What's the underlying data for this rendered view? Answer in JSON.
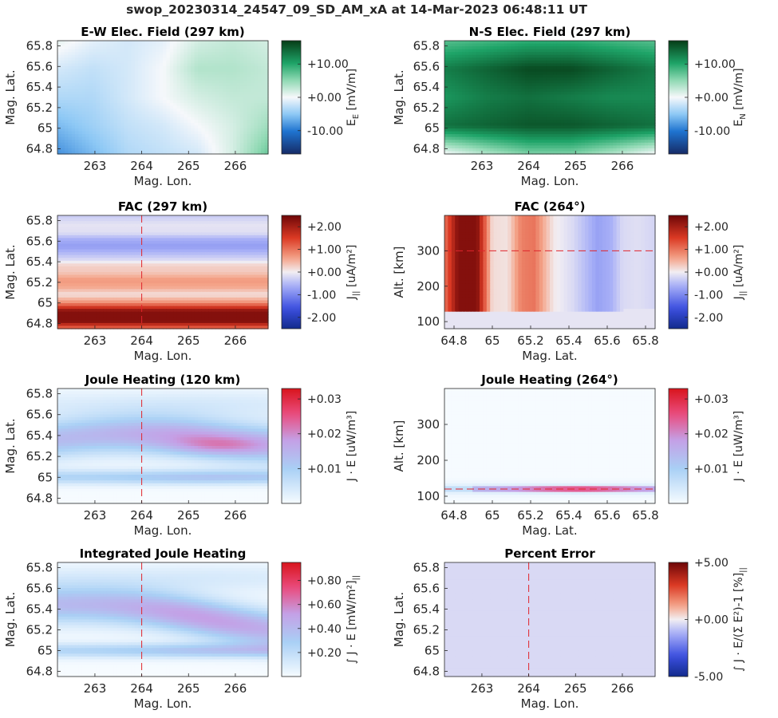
{
  "figure_title": "swop_20230314_24547_09_SD_AM_xA at 14-Mar-2023 06:48:11 UT",
  "chart_data": [
    {
      "type": "heatmap",
      "title": "E-W Elec. Field (297 km)",
      "xlabel": "Mag. Lon.",
      "ylabel": "Mag. Lat.",
      "xlim": [
        262.2,
        266.7
      ],
      "ylim": [
        64.75,
        65.85
      ],
      "xticks": [
        "263",
        "264",
        "265",
        "266"
      ],
      "yticks": [
        "64.8",
        "65",
        "65.2",
        "65.4",
        "65.6",
        "65.8"
      ],
      "colorbar": {
        "label_main": "E",
        "label_sub": "E",
        "label_unit": " [mV/m]",
        "ticks": [
          "+10.00",
          "+0.00",
          "-10.00"
        ],
        "range": [
          -17,
          17
        ],
        "colormap": "blue-white-green"
      },
      "field_description_grid_rows_top_to_bottom": [
        [
          0.05,
          -0.05,
          -0.1,
          -0.05,
          0.1,
          0.15,
          0.1
        ],
        [
          -0.1,
          -0.15,
          -0.1,
          0.0,
          0.2,
          0.2,
          0.15
        ],
        [
          -0.2,
          -0.2,
          -0.1,
          0.0,
          0.1,
          0.15,
          0.15
        ],
        [
          -0.35,
          -0.25,
          -0.15,
          -0.1,
          0.0,
          0.1,
          0.25
        ],
        [
          -0.5,
          -0.35,
          -0.2,
          -0.15,
          -0.1,
          0.1,
          0.4
        ]
      ],
      "reference_line": null
    },
    {
      "type": "heatmap",
      "title": "N-S Elec. Field (297 km)",
      "xlabel": "Mag. Lon.",
      "ylabel": "Mag. Lat.",
      "xlim": [
        262.2,
        266.7
      ],
      "ylim": [
        64.75,
        65.85
      ],
      "xticks": [
        "263",
        "264",
        "265",
        "266"
      ],
      "yticks": [
        "64.8",
        "65",
        "65.2",
        "65.4",
        "65.6",
        "65.8"
      ],
      "colorbar": {
        "label_main": "E",
        "label_sub": "N",
        "label_unit": " [mV/m]",
        "ticks": [
          "+10.00",
          "+0.00",
          "-10.00"
        ],
        "range": [
          -17,
          17
        ],
        "colormap": "blue-white-green"
      },
      "field_description_grid_rows_top_to_bottom": [
        [
          0.45,
          0.5,
          0.55,
          0.55,
          0.5,
          0.45
        ],
        [
          0.75,
          0.85,
          0.95,
          0.95,
          0.85,
          0.75
        ],
        [
          0.65,
          0.75,
          0.8,
          0.75,
          0.7,
          0.7
        ],
        [
          0.8,
          0.85,
          0.9,
          0.9,
          0.85,
          0.8
        ],
        [
          0.0,
          0.2,
          0.35,
          0.35,
          0.2,
          0.0
        ]
      ],
      "reference_line": null
    },
    {
      "type": "heatmap",
      "title": "FAC (297 km)",
      "xlabel": "Mag. Lon.",
      "ylabel": "Mag. Lat.",
      "xlim": [
        262.2,
        266.7
      ],
      "ylim": [
        64.75,
        65.85
      ],
      "xticks": [
        "263",
        "264",
        "265",
        "266"
      ],
      "yticks": [
        "64.8",
        "65",
        "65.2",
        "65.4",
        "65.6",
        "65.8"
      ],
      "colorbar": {
        "label_main": "J",
        "label_sub": "||",
        "label_unit": " [uA/m²]",
        "ticks": [
          "+2.00",
          "+1.00",
          "+0.00",
          "-1.00",
          "-2.00"
        ],
        "range": [
          -2.5,
          2.5
        ],
        "colormap": "blue-white-red"
      },
      "lat_profile": [
        [
          64.75,
          1.0
        ],
        [
          64.82,
          2.3
        ],
        [
          64.92,
          2.3
        ],
        [
          65.0,
          0.8
        ],
        [
          65.08,
          0.1
        ],
        [
          65.15,
          0.55
        ],
        [
          65.22,
          0.7
        ],
        [
          65.3,
          0.3
        ],
        [
          65.36,
          0.25
        ],
        [
          65.42,
          -0.2
        ],
        [
          65.48,
          -0.5
        ],
        [
          65.55,
          -0.8
        ],
        [
          65.62,
          -0.6
        ],
        [
          65.68,
          -0.15
        ],
        [
          65.76,
          -0.1
        ],
        [
          65.85,
          -0.35
        ]
      ],
      "reference_line": {
        "orientation": "vertical",
        "value": 264.0
      }
    },
    {
      "type": "heatmap",
      "title": "FAC (264°)",
      "xlabel": "Mag. Lat.",
      "ylabel": "Alt. [km]",
      "xlim": [
        64.75,
        65.85
      ],
      "ylim": [
        80,
        400
      ],
      "xticks": [
        "64.8",
        "65",
        "65.2",
        "65.4",
        "65.6",
        "65.8"
      ],
      "yticks": [
        "100",
        "200",
        "300"
      ],
      "colorbar": {
        "label_main": "J",
        "label_sub": "||",
        "label_unit": " [uA/m²]",
        "ticks": [
          "+2.00",
          "+1.00",
          "+0.00",
          "-1.00",
          "-2.00"
        ],
        "range": [
          -2.5,
          2.5
        ],
        "colormap": "blue-white-red"
      },
      "lat_profile": [
        [
          64.75,
          1.0
        ],
        [
          64.82,
          2.3
        ],
        [
          64.92,
          2.3
        ],
        [
          65.0,
          0.15
        ],
        [
          65.08,
          0.1
        ],
        [
          65.15,
          0.9
        ],
        [
          65.22,
          1.0
        ],
        [
          65.27,
          0.5
        ],
        [
          65.32,
          0.05
        ],
        [
          65.42,
          -0.2
        ],
        [
          65.48,
          -0.45
        ],
        [
          65.55,
          -0.75
        ],
        [
          65.62,
          -0.6
        ],
        [
          65.68,
          -0.2
        ],
        [
          65.76,
          -0.15
        ],
        [
          65.85,
          -0.25
        ]
      ],
      "bottom_altitude_km": 125,
      "reference_line": {
        "orientation": "horizontal",
        "value": 300
      }
    },
    {
      "type": "heatmap",
      "title": "Joule Heating (120 km)",
      "xlabel": "Mag. Lon.",
      "ylabel": "Mag. Lat.",
      "xlim": [
        262.2,
        266.7
      ],
      "ylim": [
        64.75,
        65.85
      ],
      "xticks": [
        "263",
        "264",
        "265",
        "266"
      ],
      "yticks": [
        "64.8",
        "65",
        "65.2",
        "65.4",
        "65.6",
        "65.8"
      ],
      "colorbar": {
        "label_main": "J · E",
        "label_sub": "",
        "label_unit": " [uW/m³]",
        "ticks": [
          "+0.03",
          "+0.02",
          "+0.01"
        ],
        "range": [
          0,
          0.033
        ],
        "colormap": "white-blue-red"
      },
      "reference_line": {
        "orientation": "vertical",
        "value": 264.0
      }
    },
    {
      "type": "heatmap",
      "title": "Joule Heating (264°)",
      "xlabel": "Mag. Lat.",
      "ylabel": "Alt. [km]",
      "xlim": [
        64.75,
        65.85
      ],
      "ylim": [
        80,
        400
      ],
      "xticks": [
        "64.8",
        "65",
        "65.2",
        "65.4",
        "65.6",
        "65.8"
      ],
      "yticks": [
        "100",
        "200",
        "300"
      ],
      "colorbar": {
        "label_main": "J · E",
        "label_sub": "",
        "label_unit": " [uW/m³]",
        "ticks": [
          "+0.03",
          "+0.02",
          "+0.01"
        ],
        "range": [
          0,
          0.033
        ],
        "colormap": "white-blue-red"
      },
      "peak_altitude_km": 120,
      "reference_line": {
        "orientation": "horizontal",
        "value": 120
      }
    },
    {
      "type": "heatmap",
      "title": "Integrated Joule Heating",
      "xlabel": "Mag. Lon.",
      "ylabel": "Mag. Lat.",
      "xlim": [
        262.2,
        266.7
      ],
      "ylim": [
        64.75,
        65.85
      ],
      "xticks": [
        "263",
        "264",
        "265",
        "266"
      ],
      "yticks": [
        "64.8",
        "65",
        "65.2",
        "65.4",
        "65.6",
        "65.8"
      ],
      "colorbar": {
        "label_main": "∫ J · E [mW/m²]",
        "label_sub": "||",
        "label_unit": "",
        "ticks": [
          "+0.80",
          "+0.60",
          "+0.40",
          "+0.20"
        ],
        "range": [
          0,
          0.95
        ],
        "colormap": "white-blue-red"
      },
      "reference_line": {
        "orientation": "vertical",
        "value": 264.0
      }
    },
    {
      "type": "heatmap",
      "title": "Percent Error",
      "xlabel": "Mag. Lon.",
      "ylabel": "Mag. Lat.",
      "xlim": [
        262.2,
        266.7
      ],
      "ylim": [
        64.75,
        65.85
      ],
      "xticks": [
        "263",
        "264",
        "265",
        "266"
      ],
      "yticks": [
        "64.8",
        "65",
        "65.2",
        "65.4",
        "65.6",
        "65.8"
      ],
      "colorbar": {
        "label_main": "∫ J · E/(Σ E²)-1 [%]",
        "label_sub": "||",
        "label_unit": "",
        "ticks": [
          "+5.00",
          "+0.00",
          "-5.00"
        ],
        "range": [
          -5,
          5
        ],
        "colormap": "blue-white-red"
      },
      "uniform_value": -0.4,
      "reference_line": {
        "orientation": "vertical",
        "value": 264.0
      }
    }
  ]
}
